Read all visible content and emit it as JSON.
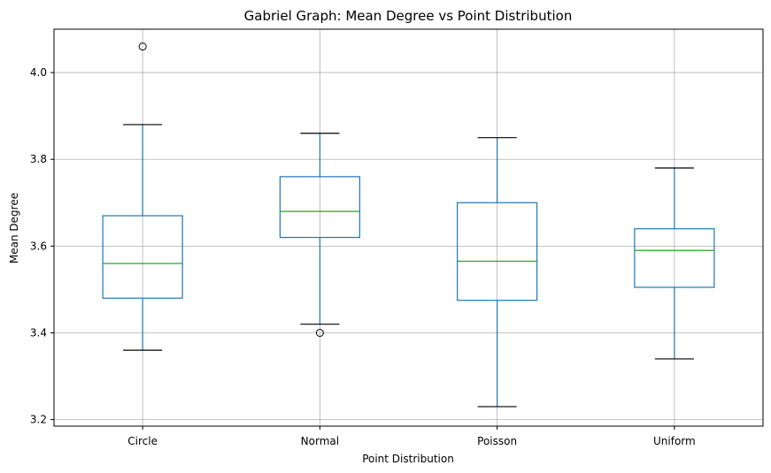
{
  "chart_data": {
    "type": "box",
    "title": "Gabriel Graph: Mean Degree vs Point Distribution",
    "xlabel": "Point Distribution",
    "ylabel": "Mean Degree",
    "ylim": [
      3.185,
      4.1
    ],
    "yticks": [
      3.2,
      3.4,
      3.6,
      3.8,
      4.0
    ],
    "ytick_labels": [
      "3.2",
      "3.4",
      "3.6",
      "3.8",
      "4.0"
    ],
    "grid": true,
    "colors": {
      "box": "#1f77b4",
      "median": "#2ca02c",
      "whisker_cap": "#000000",
      "grid": "#b0b0b0",
      "frame": "#000000"
    },
    "categories": [
      "Circle",
      "Normal",
      "Poisson",
      "Uniform"
    ],
    "boxes": [
      {
        "category": "Circle",
        "whisker_low": 3.36,
        "q1": 3.48,
        "median": 3.56,
        "q3": 3.67,
        "whisker_high": 3.88,
        "outliers": [
          4.06
        ]
      },
      {
        "category": "Normal",
        "whisker_low": 3.42,
        "q1": 3.62,
        "median": 3.68,
        "q3": 3.76,
        "whisker_high": 3.86,
        "outliers": [
          3.4
        ]
      },
      {
        "category": "Poisson",
        "whisker_low": 3.23,
        "q1": 3.475,
        "median": 3.565,
        "q3": 3.7,
        "whisker_high": 3.85,
        "outliers": []
      },
      {
        "category": "Uniform",
        "whisker_low": 3.34,
        "q1": 3.505,
        "median": 3.59,
        "q3": 3.64,
        "whisker_high": 3.78,
        "outliers": []
      }
    ]
  }
}
